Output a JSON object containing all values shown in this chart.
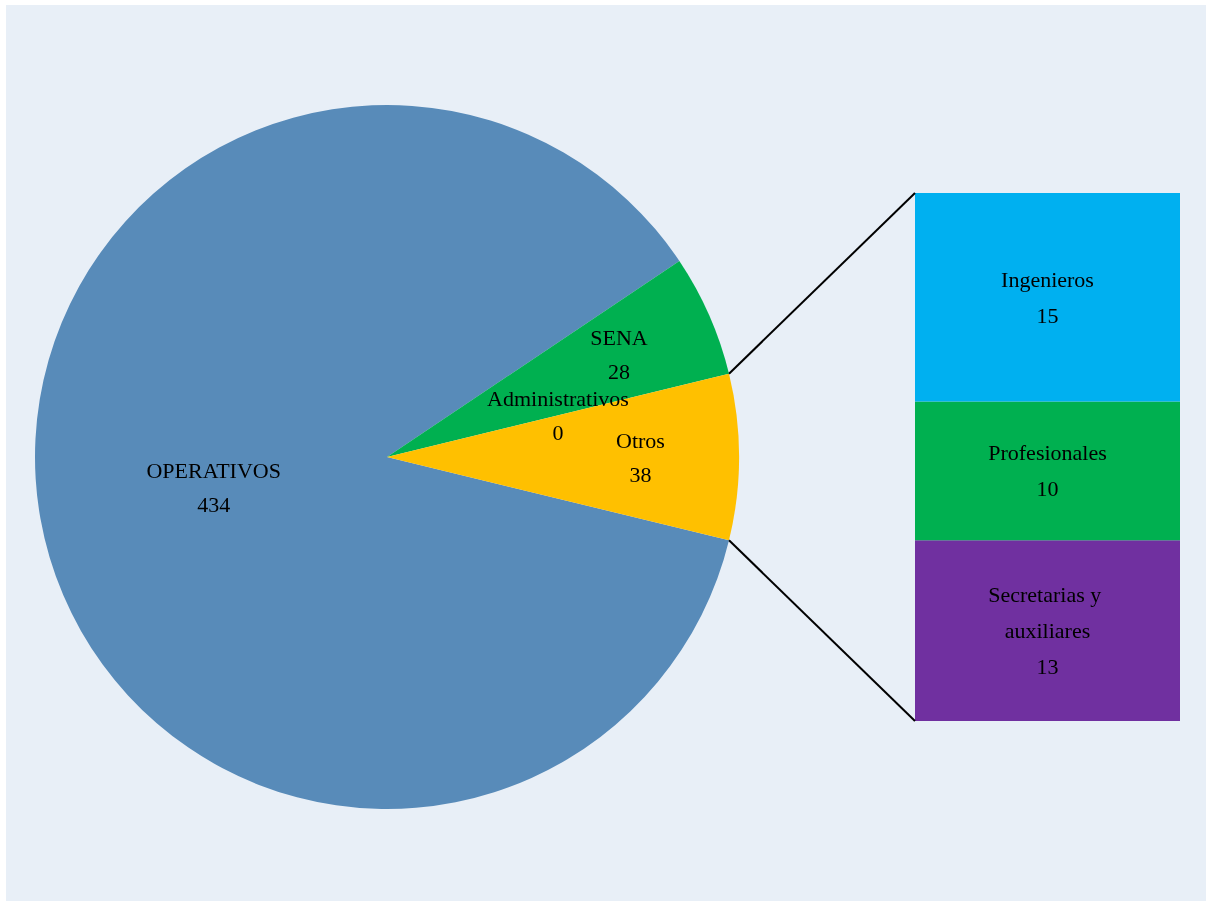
{
  "chart_data": [
    {
      "type": "pie",
      "categories": [
        "OPERATIVOS",
        "SENA",
        "Administrativos",
        "Otros"
      ],
      "values": [
        434,
        28,
        0,
        38
      ],
      "colors": [
        "#588bb9",
        "#00b050",
        null,
        "#ffc000"
      ],
      "value_labels": [
        "434",
        "28",
        "0",
        "38"
      ],
      "legend": false
    },
    {
      "type": "bar",
      "stacked": true,
      "categories": [
        null
      ],
      "data_labels": true,
      "legend": false,
      "tick_labels": false,
      "series": [
        {
          "name": "Secretarias y auxiliares",
          "color": "#7030a0",
          "values": [
            13
          ]
        },
        {
          "name": "Profesionales",
          "color": "#00b050",
          "values": [
            10
          ]
        },
        {
          "name": "Ingenieros",
          "color": "#00b0f0",
          "values": [
            15
          ]
        }
      ]
    }
  ]
}
